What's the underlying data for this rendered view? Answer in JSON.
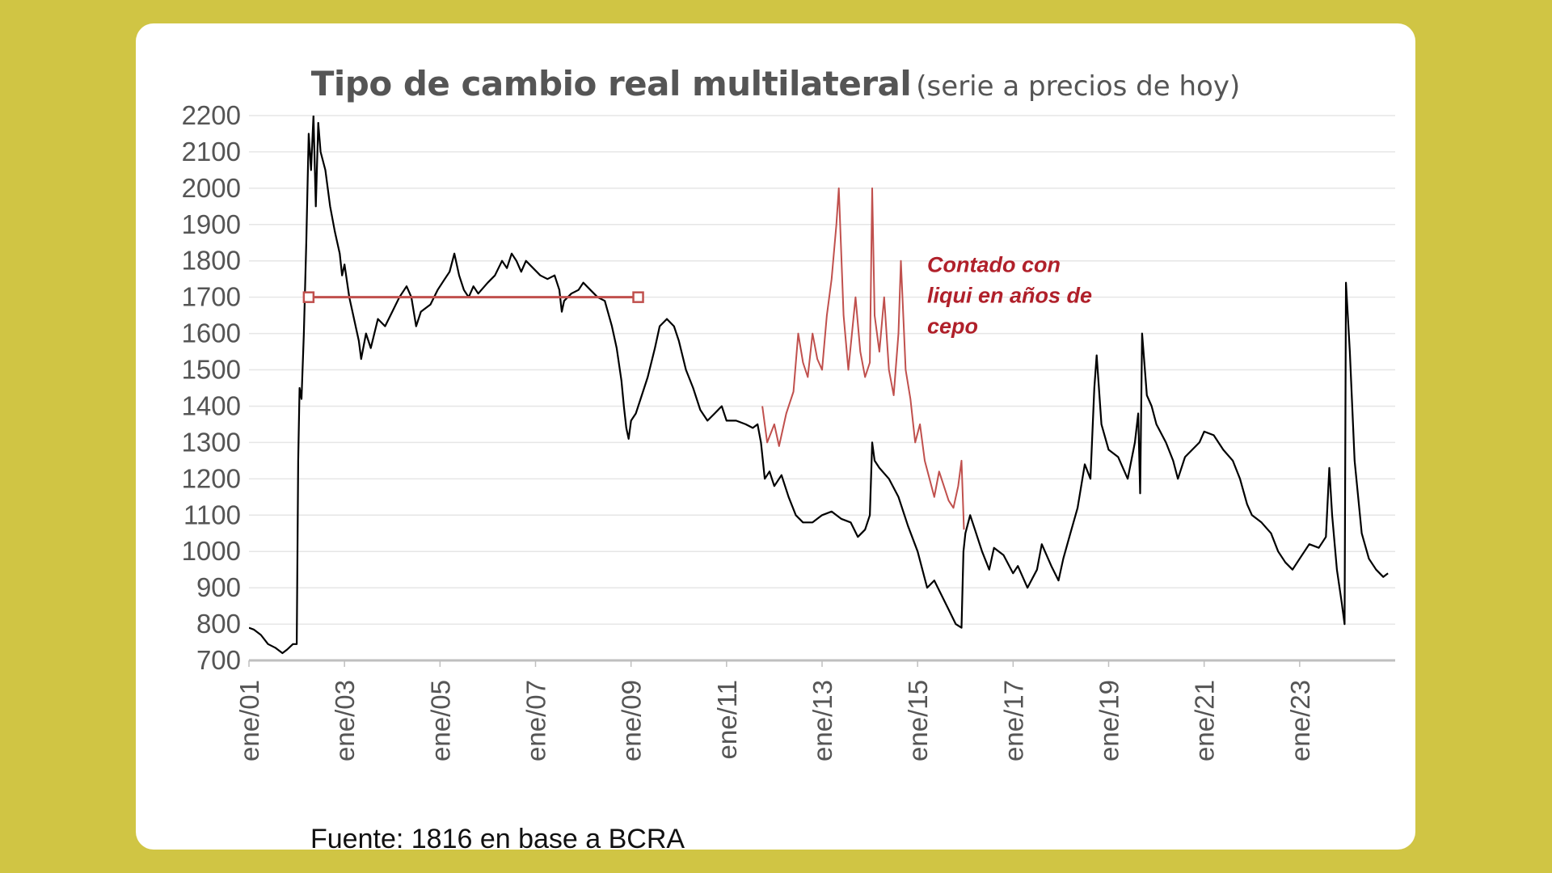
{
  "colors": {
    "background": "#d0c544",
    "card": "#ffffff",
    "official_series": "#000000",
    "ccl_series": "#c0504d",
    "reference_line": "#c0504d",
    "annotation": "#b0202a",
    "grid": "#e6e6e6",
    "axis": "#bfbfbf"
  },
  "header": {
    "title": "Tipo de cambio real multilateral",
    "subtitle": "(serie a precios de hoy)"
  },
  "footer": {
    "source": "Fuente: 1816 en base a BCRA"
  },
  "chart_data": {
    "type": "line",
    "title": "Tipo de cambio real multilateral",
    "subtitle": "(serie a precios de hoy)",
    "xlabel": "",
    "ylabel": "",
    "ylim": [
      700,
      2200
    ],
    "xlim": [
      2001.0,
      2025.0
    ],
    "y_ticks": [
      2200,
      2100,
      2000,
      1900,
      1800,
      1700,
      1600,
      1500,
      1400,
      1300,
      1200,
      1100,
      1000,
      900,
      800,
      700
    ],
    "x_ticks": [
      {
        "label": "ene/01",
        "x": 2001
      },
      {
        "label": "ene/03",
        "x": 2003
      },
      {
        "label": "ene/05",
        "x": 2005
      },
      {
        "label": "ene/07",
        "x": 2007
      },
      {
        "label": "ene/09",
        "x": 2009
      },
      {
        "label": "ene/11",
        "x": 2011
      },
      {
        "label": "ene/13",
        "x": 2013
      },
      {
        "label": "ene/15",
        "x": 2015
      },
      {
        "label": "ene/17",
        "x": 2017
      },
      {
        "label": "ene/19",
        "x": 2019
      },
      {
        "label": "ene/21",
        "x": 2021
      },
      {
        "label": "ene/23",
        "x": 2023
      }
    ],
    "grid": true,
    "legend": "none",
    "series": [
      {
        "points": [
          [
            2001.0,
            790
          ],
          [
            2001.1,
            785
          ],
          [
            2001.25,
            770
          ],
          [
            2001.4,
            745
          ],
          [
            2001.55,
            735
          ],
          [
            2001.7,
            720
          ],
          [
            2001.8,
            730
          ],
          [
            2001.92,
            745
          ],
          [
            2002.0,
            745
          ],
          [
            2002.03,
            1250
          ],
          [
            2002.06,
            1450
          ],
          [
            2002.1,
            1420
          ],
          [
            2002.15,
            1600
          ],
          [
            2002.2,
            1850
          ],
          [
            2002.25,
            2150
          ],
          [
            2002.3,
            2050
          ],
          [
            2002.35,
            2200
          ],
          [
            2002.4,
            1950
          ],
          [
            2002.45,
            2180
          ],
          [
            2002.5,
            2100
          ],
          [
            2002.6,
            2050
          ],
          [
            2002.7,
            1950
          ],
          [
            2002.8,
            1880
          ],
          [
            2002.9,
            1820
          ],
          [
            2002.95,
            1760
          ],
          [
            2003.0,
            1790
          ],
          [
            2003.1,
            1700
          ],
          [
            2003.2,
            1640
          ],
          [
            2003.3,
            1580
          ],
          [
            2003.35,
            1530
          ],
          [
            2003.45,
            1600
          ],
          [
            2003.55,
            1560
          ],
          [
            2003.7,
            1640
          ],
          [
            2003.85,
            1620
          ],
          [
            2004.0,
            1660
          ],
          [
            2004.15,
            1700
          ],
          [
            2004.3,
            1730
          ],
          [
            2004.4,
            1700
          ],
          [
            2004.5,
            1620
          ],
          [
            2004.6,
            1660
          ],
          [
            2004.8,
            1680
          ],
          [
            2004.95,
            1720
          ],
          [
            2005.1,
            1750
          ],
          [
            2005.2,
            1770
          ],
          [
            2005.3,
            1820
          ],
          [
            2005.4,
            1760
          ],
          [
            2005.5,
            1720
          ],
          [
            2005.6,
            1700
          ],
          [
            2005.7,
            1730
          ],
          [
            2005.8,
            1710
          ],
          [
            2006.0,
            1740
          ],
          [
            2006.15,
            1760
          ],
          [
            2006.3,
            1800
          ],
          [
            2006.4,
            1780
          ],
          [
            2006.5,
            1820
          ],
          [
            2006.6,
            1800
          ],
          [
            2006.7,
            1770
          ],
          [
            2006.8,
            1800
          ],
          [
            2006.95,
            1780
          ],
          [
            2007.1,
            1760
          ],
          [
            2007.25,
            1750
          ],
          [
            2007.4,
            1760
          ],
          [
            2007.5,
            1720
          ],
          [
            2007.55,
            1660
          ],
          [
            2007.6,
            1690
          ],
          [
            2007.75,
            1710
          ],
          [
            2007.9,
            1720
          ],
          [
            2008.0,
            1740
          ],
          [
            2008.15,
            1720
          ],
          [
            2008.3,
            1700
          ],
          [
            2008.45,
            1690
          ],
          [
            2008.6,
            1620
          ],
          [
            2008.7,
            1560
          ],
          [
            2008.8,
            1470
          ],
          [
            2008.85,
            1400
          ],
          [
            2008.9,
            1340
          ],
          [
            2008.95,
            1310
          ],
          [
            2009.0,
            1360
          ],
          [
            2009.1,
            1380
          ],
          [
            2009.2,
            1420
          ],
          [
            2009.35,
            1480
          ],
          [
            2009.5,
            1560
          ],
          [
            2009.6,
            1620
          ],
          [
            2009.75,
            1640
          ],
          [
            2009.9,
            1620
          ],
          [
            2010.0,
            1580
          ],
          [
            2010.15,
            1500
          ],
          [
            2010.3,
            1450
          ],
          [
            2010.45,
            1390
          ],
          [
            2010.6,
            1360
          ],
          [
            2010.75,
            1380
          ],
          [
            2010.9,
            1400
          ],
          [
            2011.0,
            1360
          ],
          [
            2011.2,
            1360
          ],
          [
            2011.4,
            1350
          ],
          [
            2011.55,
            1340
          ],
          [
            2011.65,
            1350
          ],
          [
            2011.72,
            1300
          ],
          [
            2011.8,
            1200
          ],
          [
            2011.9,
            1220
          ],
          [
            2012.0,
            1180
          ],
          [
            2012.15,
            1210
          ],
          [
            2012.3,
            1150
          ],
          [
            2012.45,
            1100
          ],
          [
            2012.6,
            1080
          ],
          [
            2012.8,
            1080
          ],
          [
            2013.0,
            1100
          ],
          [
            2013.2,
            1110
          ],
          [
            2013.4,
            1090
          ],
          [
            2013.6,
            1080
          ],
          [
            2013.75,
            1040
          ],
          [
            2013.9,
            1060
          ],
          [
            2014.0,
            1100
          ],
          [
            2014.05,
            1300
          ],
          [
            2014.1,
            1250
          ],
          [
            2014.2,
            1230
          ],
          [
            2014.4,
            1200
          ],
          [
            2014.6,
            1150
          ],
          [
            2014.8,
            1070
          ],
          [
            2015.0,
            1000
          ],
          [
            2015.1,
            950
          ],
          [
            2015.2,
            900
          ],
          [
            2015.35,
            920
          ],
          [
            2015.5,
            880
          ],
          [
            2015.65,
            840
          ],
          [
            2015.8,
            800
          ],
          [
            2015.92,
            790
          ],
          [
            2015.96,
            1000
          ],
          [
            2016.0,
            1050
          ],
          [
            2016.1,
            1100
          ],
          [
            2016.2,
            1060
          ],
          [
            2016.35,
            1000
          ],
          [
            2016.5,
            950
          ],
          [
            2016.6,
            1010
          ],
          [
            2016.8,
            990
          ],
          [
            2017.0,
            940
          ],
          [
            2017.1,
            960
          ],
          [
            2017.3,
            900
          ],
          [
            2017.5,
            950
          ],
          [
            2017.6,
            1020
          ],
          [
            2017.8,
            960
          ],
          [
            2017.95,
            920
          ],
          [
            2018.05,
            980
          ],
          [
            2018.2,
            1050
          ],
          [
            2018.35,
            1120
          ],
          [
            2018.5,
            1240
          ],
          [
            2018.62,
            1200
          ],
          [
            2018.7,
            1450
          ],
          [
            2018.75,
            1540
          ],
          [
            2018.85,
            1350
          ],
          [
            2019.0,
            1280
          ],
          [
            2019.2,
            1260
          ],
          [
            2019.4,
            1200
          ],
          [
            2019.55,
            1300
          ],
          [
            2019.62,
            1380
          ],
          [
            2019.66,
            1160
          ],
          [
            2019.7,
            1600
          ],
          [
            2019.8,
            1430
          ],
          [
            2019.9,
            1400
          ],
          [
            2020.0,
            1350
          ],
          [
            2020.2,
            1300
          ],
          [
            2020.35,
            1250
          ],
          [
            2020.45,
            1200
          ],
          [
            2020.6,
            1260
          ],
          [
            2020.75,
            1280
          ],
          [
            2020.9,
            1300
          ],
          [
            2021.0,
            1330
          ],
          [
            2021.2,
            1320
          ],
          [
            2021.4,
            1280
          ],
          [
            2021.6,
            1250
          ],
          [
            2021.75,
            1200
          ],
          [
            2021.9,
            1130
          ],
          [
            2022.0,
            1100
          ],
          [
            2022.2,
            1080
          ],
          [
            2022.4,
            1050
          ],
          [
            2022.55,
            1000
          ],
          [
            2022.7,
            970
          ],
          [
            2022.85,
            950
          ],
          [
            2023.0,
            980
          ],
          [
            2023.2,
            1020
          ],
          [
            2023.4,
            1010
          ],
          [
            2023.55,
            1040
          ],
          [
            2023.62,
            1230
          ],
          [
            2023.68,
            1100
          ],
          [
            2023.78,
            950
          ],
          [
            2023.88,
            860
          ],
          [
            2023.94,
            800
          ],
          [
            2023.97,
            1740
          ],
          [
            2024.05,
            1550
          ],
          [
            2024.15,
            1250
          ],
          [
            2024.3,
            1050
          ],
          [
            2024.45,
            980
          ],
          [
            2024.6,
            950
          ],
          [
            2024.75,
            930
          ],
          [
            2024.85,
            940
          ]
        ]
      },
      {
        "points": [
          [
            2011.75,
            1400
          ],
          [
            2011.85,
            1300
          ],
          [
            2012.0,
            1350
          ],
          [
            2012.1,
            1290
          ],
          [
            2012.25,
            1380
          ],
          [
            2012.4,
            1440
          ],
          [
            2012.5,
            1600
          ],
          [
            2012.6,
            1520
          ],
          [
            2012.7,
            1480
          ],
          [
            2012.8,
            1600
          ],
          [
            2012.9,
            1530
          ],
          [
            2013.0,
            1500
          ],
          [
            2013.1,
            1650
          ],
          [
            2013.2,
            1750
          ],
          [
            2013.3,
            1900
          ],
          [
            2013.35,
            2000
          ],
          [
            2013.45,
            1650
          ],
          [
            2013.55,
            1500
          ],
          [
            2013.7,
            1700
          ],
          [
            2013.8,
            1550
          ],
          [
            2013.9,
            1480
          ],
          [
            2014.0,
            1520
          ],
          [
            2014.05,
            2000
          ],
          [
            2014.1,
            1650
          ],
          [
            2014.2,
            1550
          ],
          [
            2014.3,
            1700
          ],
          [
            2014.4,
            1500
          ],
          [
            2014.5,
            1430
          ],
          [
            2014.6,
            1600
          ],
          [
            2014.65,
            1800
          ],
          [
            2014.75,
            1500
          ],
          [
            2014.85,
            1420
          ],
          [
            2014.95,
            1300
          ],
          [
            2015.05,
            1350
          ],
          [
            2015.15,
            1250
          ],
          [
            2015.25,
            1200
          ],
          [
            2015.35,
            1150
          ],
          [
            2015.45,
            1220
          ],
          [
            2015.55,
            1180
          ],
          [
            2015.65,
            1140
          ],
          [
            2015.75,
            1120
          ],
          [
            2015.85,
            1180
          ],
          [
            2015.92,
            1250
          ],
          [
            2015.97,
            1060
          ]
        ]
      }
    ],
    "reference_line": {
      "x_start": 2002.25,
      "x_end": 2009.15,
      "y": 1700
    },
    "annotations": [
      {
        "lines": [
          "Contado con",
          "liqui en años de",
          "cepo"
        ],
        "x": 2015.2,
        "y": 1800
      }
    ]
  }
}
